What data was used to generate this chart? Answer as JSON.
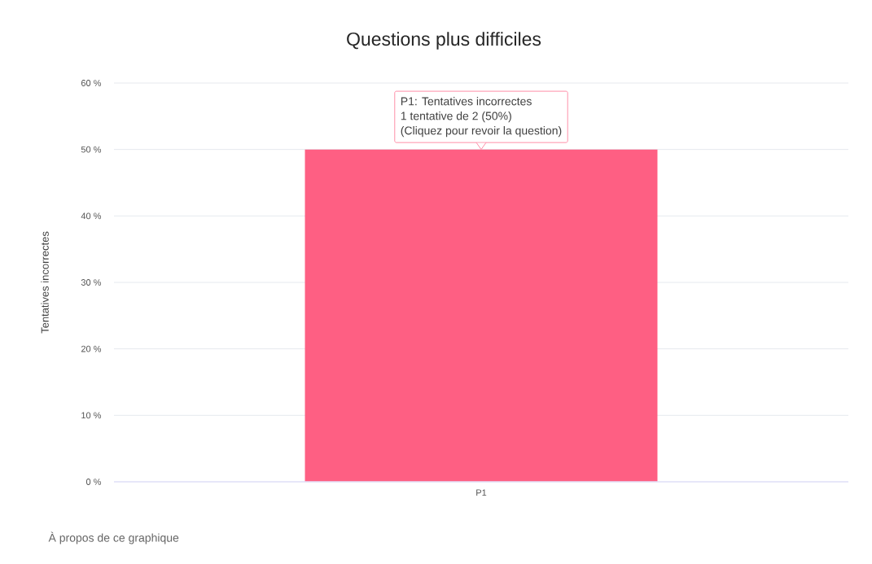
{
  "chart_data": {
    "type": "bar",
    "title": "Questions plus difficiles",
    "ylabel": "Tentatives incorrectes",
    "categories": [
      "P1"
    ],
    "values": [
      50
    ],
    "color": "#fe5f83",
    "ylim": [
      0,
      60
    ],
    "yticks": [
      {
        "value": 0,
        "label": "0 %"
      },
      {
        "value": 10,
        "label": "10 %"
      },
      {
        "value": 20,
        "label": "20 %"
      },
      {
        "value": 30,
        "label": "30 %"
      },
      {
        "value": 40,
        "label": "40 %"
      },
      {
        "value": 50,
        "label": "50 %"
      },
      {
        "value": 60,
        "label": "60 %"
      }
    ],
    "grid": "y",
    "annotations": [
      "P1: Tentatives incorrectes",
      "1 tentative de 2 (50%)",
      "(Cliquez pour revoir la question)",
      "À propos de ce graphique"
    ]
  }
}
